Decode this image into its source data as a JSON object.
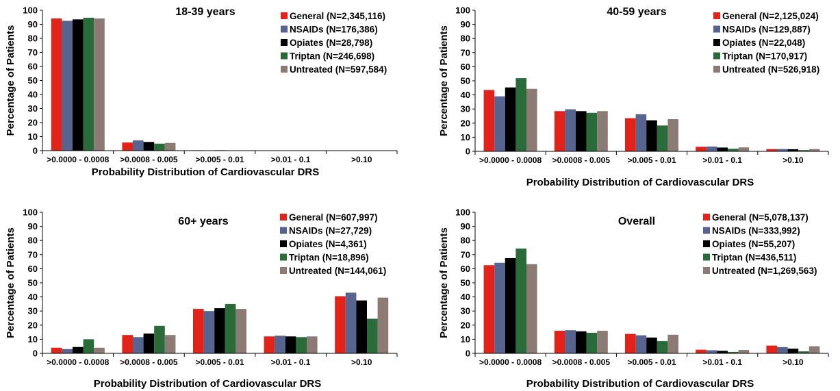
{
  "chart_data": [
    {
      "type": "bar",
      "title": "18-39 years",
      "xlabel": "Probability Distribution of Cardiovascular DRS",
      "ylabel": "Percentage of Patients",
      "ylim": [
        0,
        100
      ],
      "yticks": [
        0,
        10,
        20,
        30,
        40,
        50,
        60,
        70,
        80,
        90,
        100
      ],
      "categories": [
        ">0.0000 - 0.0008",
        ">0.0008 - 0.005",
        ">0.005 - 0.01",
        ">0.01 - 0.1",
        ">0.10"
      ],
      "legend_position": "top-right",
      "series": [
        {
          "name": "General (N=2,345,116)",
          "color": "#e2231a",
          "values": [
            94.2,
            5.8,
            0.3,
            0.0,
            0.0
          ]
        },
        {
          "name": "NSAIDs (N=176,386)",
          "color": "#56648f",
          "values": [
            92.5,
            7.3,
            0.2,
            0.0,
            0.0
          ]
        },
        {
          "name": "Opiates (N=28,798)",
          "color": "#000000",
          "values": [
            93.5,
            6.2,
            0.3,
            0.0,
            0.0
          ]
        },
        {
          "name": "Triptan (N=246,698)",
          "color": "#2a6b3a",
          "values": [
            94.7,
            5.0,
            0.2,
            0.0,
            0.0
          ]
        },
        {
          "name": "Untreated (N=597,584)",
          "color": "#8c7b74",
          "values": [
            94.2,
            5.5,
            0.2,
            0.0,
            0.0
          ]
        }
      ]
    },
    {
      "type": "bar",
      "title": "40-59  years",
      "xlabel": "Probability Distribution of Cardiovascular DRS",
      "ylabel": "Percentage of Patients",
      "ylim": [
        0,
        100
      ],
      "yticks": [
        0,
        10,
        20,
        30,
        40,
        50,
        60,
        70,
        80,
        90,
        100
      ],
      "categories": [
        ">0.0000 - 0.0008",
        ">0.0008 - 0.005",
        ">0.005 - 0.01",
        ">0.01 - 0.1",
        ">0.10"
      ],
      "legend_position": "top-right",
      "series": [
        {
          "name": "General (N=2,125,024)",
          "color": "#e2231a",
          "values": [
            43.5,
            28.5,
            23.5,
            3.2,
            1.6
          ]
        },
        {
          "name": "NSAIDs (N=129,887)",
          "color": "#56648f",
          "values": [
            39.0,
            29.8,
            26.3,
            3.4,
            1.6
          ]
        },
        {
          "name": "Opiates (N=22,048)",
          "color": "#000000",
          "values": [
            45.3,
            28.5,
            22.0,
            2.7,
            1.5
          ]
        },
        {
          "name": "Triptan (N=170,917)",
          "color": "#2a6b3a",
          "values": [
            51.9,
            27.3,
            18.3,
            1.8,
            0.9
          ]
        },
        {
          "name": "Untreated (N=526,918)",
          "color": "#8c7b74",
          "values": [
            44.3,
            28.5,
            22.8,
            2.8,
            1.6
          ]
        }
      ]
    },
    {
      "type": "bar",
      "title": "60+ years",
      "xlabel": "Probability Distribution of Cardiovascular DRS",
      "ylabel": "Percentage of Patients",
      "ylim": [
        0,
        100
      ],
      "yticks": [
        0,
        10,
        20,
        30,
        40,
        50,
        60,
        70,
        80,
        90,
        100
      ],
      "categories": [
        ">0.0000 - 0.0008",
        ">0.0008 - 0.005",
        ">0.005 - 0.01",
        ">0.01 - 0.1",
        ">0.10"
      ],
      "legend_position": "top-right",
      "series": [
        {
          "name": "General (N=607,997)",
          "color": "#e2231a",
          "values": [
            4.0,
            13.0,
            31.5,
            12.0,
            40.5
          ]
        },
        {
          "name": "NSAIDs (N=27,729)",
          "color": "#56648f",
          "values": [
            3.0,
            11.5,
            30.0,
            12.5,
            43.0
          ]
        },
        {
          "name": "Opiates (N=4,361)",
          "color": "#000000",
          "values": [
            4.5,
            14.0,
            32.0,
            12.0,
            37.5
          ]
        },
        {
          "name": "Triptan (N=18,896)",
          "color": "#2a6b3a",
          "values": [
            10.0,
            19.5,
            35.0,
            11.5,
            24.5
          ]
        },
        {
          "name": "Untreated (N=144,061)",
          "color": "#8c7b74",
          "values": [
            4.0,
            13.0,
            31.5,
            12.0,
            39.5
          ]
        }
      ]
    },
    {
      "type": "bar",
      "title": "Overall",
      "xlabel": "Probability Distribution of Cardiovascular DRS",
      "ylabel": "Percentage of Patients",
      "ylim": [
        0,
        100
      ],
      "yticks": [
        0,
        10,
        20,
        30,
        40,
        50,
        60,
        70,
        80,
        90,
        100
      ],
      "categories": [
        ">0.0000 - 0.0008",
        ">0.0008 - 0.005",
        ">0.005 - 0.01",
        ">0.01 - 0.1",
        ">0.10"
      ],
      "legend_position": "top-right",
      "series": [
        {
          "name": "General (N=5,078,137)",
          "color": "#e2231a",
          "values": [
            62.5,
            16.0,
            13.8,
            2.6,
            5.5
          ]
        },
        {
          "name": "NSAIDs (N=333,992)",
          "color": "#56648f",
          "values": [
            64.2,
            16.4,
            12.8,
            2.2,
            4.4
          ]
        },
        {
          "name": "Opiates (N=55,207)",
          "color": "#000000",
          "values": [
            67.5,
            15.6,
            11.2,
            1.8,
            3.3
          ]
        },
        {
          "name": "Triptan (N=436,511)",
          "color": "#2a6b3a",
          "values": [
            74.3,
            14.6,
            8.7,
            1.0,
            1.4
          ]
        },
        {
          "name": "Untreated (N=1,269,563)",
          "color": "#8c7b74",
          "values": [
            63.2,
            16.0,
            13.2,
            2.4,
            5.0
          ]
        }
      ]
    }
  ]
}
